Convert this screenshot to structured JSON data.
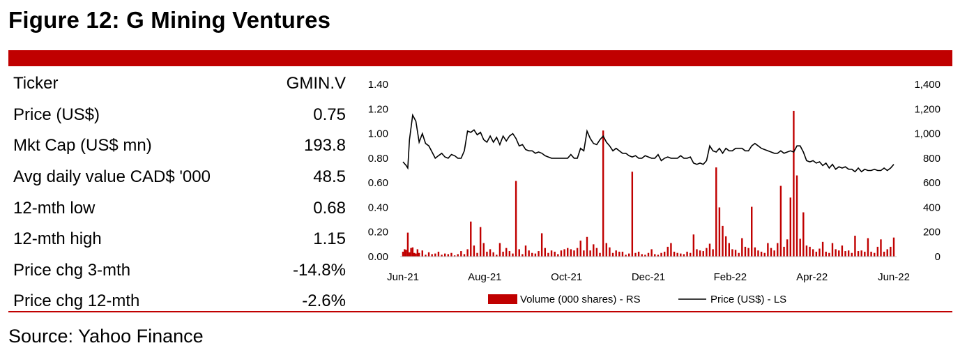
{
  "figure_title": "Figure 12: G Mining Ventures",
  "source": "Source: Yahoo Finance",
  "colors": {
    "accent": "#c00000",
    "volume": "#c00000",
    "price": "#000000"
  },
  "stats": [
    {
      "label": "Ticker",
      "value": "GMIN.V"
    },
    {
      "label": "Price (US$)",
      "value": "0.75"
    },
    {
      "label": "Mkt Cap (US$ mn)",
      "value": "193.8"
    },
    {
      "label": "Avg daily value CAD$ '000",
      "value": "48.5"
    },
    {
      "label": "12-mth low",
      "value": "0.68"
    },
    {
      "label": "12-mth high",
      "value": "1.15"
    },
    {
      "label": "Price chg 3-mth",
      "value": "-14.8%"
    },
    {
      "label": "Price chg 12-mth",
      "value": "-2.6%"
    }
  ],
  "chart_data": {
    "type": "bar+line",
    "x_tick_labels": [
      "Jun-21",
      "Aug-21",
      "Oct-21",
      "Dec-21",
      "Feb-22",
      "Apr-22",
      "Jun-22"
    ],
    "y_left": {
      "ylim": [
        0,
        1.4
      ],
      "ticks": [
        "0.00",
        "0.20",
        "0.40",
        "0.60",
        "0.80",
        "1.00",
        "1.20",
        "1.40"
      ]
    },
    "y_right": {
      "ylim": [
        0,
        1400
      ],
      "ticks": [
        "0",
        "200",
        "400",
        "600",
        "800",
        "1,000",
        "1,200",
        "1,400"
      ]
    },
    "legend_position": "bottom",
    "series": [
      {
        "name": "Volume (000 shares) - RS",
        "type": "bar",
        "axis": "right",
        "points": [
          [
            0,
            40
          ],
          [
            0.5,
            60
          ],
          [
            1,
            55
          ],
          [
            1.5,
            195
          ],
          [
            2,
            35
          ],
          [
            2.5,
            70
          ],
          [
            3,
            75
          ],
          [
            3.5,
            30
          ],
          [
            4,
            25
          ],
          [
            4.5,
            60
          ],
          [
            5,
            30
          ],
          [
            6,
            50
          ],
          [
            7,
            15
          ],
          [
            8,
            35
          ],
          [
            9,
            20
          ],
          [
            10,
            25
          ],
          [
            11,
            40
          ],
          [
            12,
            15
          ],
          [
            13,
            25
          ],
          [
            14,
            20
          ],
          [
            15,
            30
          ],
          [
            16,
            10
          ],
          [
            17,
            20
          ],
          [
            18,
            45
          ],
          [
            19,
            20
          ],
          [
            20,
            60
          ],
          [
            21,
            285
          ],
          [
            22,
            90
          ],
          [
            23,
            30
          ],
          [
            24,
            240
          ],
          [
            25,
            110
          ],
          [
            26,
            40
          ],
          [
            27,
            60
          ],
          [
            28,
            35
          ],
          [
            29,
            15
          ],
          [
            30,
            110
          ],
          [
            31,
            40
          ],
          [
            32,
            70
          ],
          [
            33,
            45
          ],
          [
            34,
            25
          ],
          [
            35,
            615
          ],
          [
            36,
            60
          ],
          [
            37,
            20
          ],
          [
            38,
            90
          ],
          [
            39,
            50
          ],
          [
            40,
            30
          ],
          [
            41,
            25
          ],
          [
            42,
            45
          ],
          [
            43,
            190
          ],
          [
            44,
            70
          ],
          [
            45,
            30
          ],
          [
            46,
            50
          ],
          [
            47,
            40
          ],
          [
            48,
            20
          ],
          [
            49,
            50
          ],
          [
            50,
            60
          ],
          [
            51,
            70
          ],
          [
            52,
            60
          ],
          [
            53,
            50
          ],
          [
            54,
            70
          ],
          [
            55,
            130
          ],
          [
            56,
            50
          ],
          [
            57,
            160
          ],
          [
            58,
            50
          ],
          [
            59,
            100
          ],
          [
            60,
            70
          ],
          [
            61,
            30
          ],
          [
            62,
            1025
          ],
          [
            63,
            110
          ],
          [
            64,
            75
          ],
          [
            65,
            30
          ],
          [
            66,
            50
          ],
          [
            67,
            40
          ],
          [
            68,
            40
          ],
          [
            69,
            15
          ],
          [
            70,
            25
          ],
          [
            71,
            690
          ],
          [
            72,
            30
          ],
          [
            73,
            40
          ],
          [
            74,
            20
          ],
          [
            75,
            15
          ],
          [
            76,
            30
          ],
          [
            77,
            60
          ],
          [
            78,
            20
          ],
          [
            79,
            15
          ],
          [
            80,
            30
          ],
          [
            81,
            40
          ],
          [
            82,
            80
          ],
          [
            83,
            110
          ],
          [
            84,
            40
          ],
          [
            85,
            30
          ],
          [
            86,
            25
          ],
          [
            87,
            20
          ],
          [
            88,
            40
          ],
          [
            89,
            30
          ],
          [
            90,
            180
          ],
          [
            91,
            60
          ],
          [
            92,
            50
          ],
          [
            93,
            45
          ],
          [
            94,
            70
          ],
          [
            95,
            105
          ],
          [
            96,
            60
          ],
          [
            97,
            725
          ],
          [
            98,
            400
          ],
          [
            99,
            250
          ],
          [
            100,
            165
          ],
          [
            101,
            110
          ],
          [
            102,
            60
          ],
          [
            103,
            55
          ],
          [
            104,
            30
          ],
          [
            105,
            150
          ],
          [
            106,
            80
          ],
          [
            107,
            70
          ],
          [
            108,
            405
          ],
          [
            109,
            75
          ],
          [
            110,
            50
          ],
          [
            111,
            40
          ],
          [
            112,
            30
          ],
          [
            113,
            110
          ],
          [
            114,
            70
          ],
          [
            115,
            50
          ],
          [
            116,
            110
          ],
          [
            117,
            575
          ],
          [
            118,
            80
          ],
          [
            119,
            140
          ],
          [
            120,
            480
          ],
          [
            121,
            1185
          ],
          [
            122,
            660
          ],
          [
            123,
            145
          ],
          [
            124,
            360
          ],
          [
            125,
            90
          ],
          [
            126,
            80
          ],
          [
            127,
            60
          ],
          [
            128,
            40
          ],
          [
            129,
            65
          ],
          [
            130,
            120
          ],
          [
            131,
            40
          ],
          [
            132,
            30
          ],
          [
            133,
            110
          ],
          [
            134,
            60
          ],
          [
            135,
            50
          ],
          [
            136,
            90
          ],
          [
            137,
            45
          ],
          [
            138,
            50
          ],
          [
            139,
            30
          ],
          [
            140,
            170
          ],
          [
            141,
            45
          ],
          [
            142,
            50
          ],
          [
            143,
            40
          ],
          [
            144,
            150
          ],
          [
            145,
            40
          ],
          [
            146,
            30
          ],
          [
            147,
            80
          ],
          [
            148,
            140
          ],
          [
            149,
            40
          ],
          [
            150,
            60
          ],
          [
            151,
            80
          ],
          [
            152,
            155
          ]
        ]
      },
      {
        "name": "Price (US$) - LS",
        "type": "line",
        "axis": "left",
        "points": [
          [
            0,
            0.77
          ],
          [
            1,
            0.74
          ],
          [
            1.5,
            0.72
          ],
          [
            2,
            0.95
          ],
          [
            3,
            1.15
          ],
          [
            4,
            1.1
          ],
          [
            5,
            0.93
          ],
          [
            6,
            1.0
          ],
          [
            7,
            0.92
          ],
          [
            8,
            0.9
          ],
          [
            9,
            0.85
          ],
          [
            10,
            0.8
          ],
          [
            11,
            0.82
          ],
          [
            12,
            0.84
          ],
          [
            13,
            0.81
          ],
          [
            14,
            0.8
          ],
          [
            15,
            0.83
          ],
          [
            16,
            0.82
          ],
          [
            17,
            0.8
          ],
          [
            18,
            0.8
          ],
          [
            19,
            0.86
          ],
          [
            20,
            1.02
          ],
          [
            21,
            1.01
          ],
          [
            22,
            1.03
          ],
          [
            23,
            0.99
          ],
          [
            24,
            1.01
          ],
          [
            25,
            0.95
          ],
          [
            26,
            0.93
          ],
          [
            27,
            0.98
          ],
          [
            28,
            0.93
          ],
          [
            29,
            0.97
          ],
          [
            30,
            0.91
          ],
          [
            31,
            0.98
          ],
          [
            32,
            0.94
          ],
          [
            33,
            0.98
          ],
          [
            34,
            1.0
          ],
          [
            35,
            0.96
          ],
          [
            36,
            0.9
          ],
          [
            37,
            0.91
          ],
          [
            38,
            0.87
          ],
          [
            39,
            0.86
          ],
          [
            40,
            0.86
          ],
          [
            41,
            0.84
          ],
          [
            42,
            0.85
          ],
          [
            43,
            0.84
          ],
          [
            44,
            0.82
          ],
          [
            45,
            0.81
          ],
          [
            46,
            0.8
          ],
          [
            47,
            0.8
          ],
          [
            48,
            0.8
          ],
          [
            49,
            0.8
          ],
          [
            50,
            0.8
          ],
          [
            51,
            0.8
          ],
          [
            52,
            0.83
          ],
          [
            53,
            0.8
          ],
          [
            54,
            0.8
          ],
          [
            55,
            0.88
          ],
          [
            56,
            0.86
          ],
          [
            57,
            1.02
          ],
          [
            58,
            0.96
          ],
          [
            59,
            0.92
          ],
          [
            60,
            0.91
          ],
          [
            61,
            0.95
          ],
          [
            62,
            0.98
          ],
          [
            63,
            0.93
          ],
          [
            64,
            0.9
          ],
          [
            65,
            0.86
          ],
          [
            66,
            0.88
          ],
          [
            67,
            0.86
          ],
          [
            68,
            0.84
          ],
          [
            69,
            0.84
          ],
          [
            70,
            0.82
          ],
          [
            71,
            0.81
          ],
          [
            72,
            0.82
          ],
          [
            73,
            0.8
          ],
          [
            74,
            0.8
          ],
          [
            75,
            0.82
          ],
          [
            76,
            0.81
          ],
          [
            77,
            0.8
          ],
          [
            78,
            0.8
          ],
          [
            79,
            0.83
          ],
          [
            80,
            0.78
          ],
          [
            81,
            0.8
          ],
          [
            82,
            0.81
          ],
          [
            83,
            0.8
          ],
          [
            84,
            0.8
          ],
          [
            85,
            0.8
          ],
          [
            86,
            0.82
          ],
          [
            87,
            0.8
          ],
          [
            88,
            0.8
          ],
          [
            89,
            0.81
          ],
          [
            90,
            0.76
          ],
          [
            91,
            0.75
          ],
          [
            92,
            0.76
          ],
          [
            93,
            0.75
          ],
          [
            94,
            0.78
          ],
          [
            95,
            0.9
          ],
          [
            96,
            0.86
          ],
          [
            97,
            0.85
          ],
          [
            98,
            0.88
          ],
          [
            99,
            0.84
          ],
          [
            100,
            0.88
          ],
          [
            101,
            0.86
          ],
          [
            102,
            0.86
          ],
          [
            103,
            0.88
          ],
          [
            104,
            0.88
          ],
          [
            105,
            0.88
          ],
          [
            106,
            0.86
          ],
          [
            107,
            0.86
          ],
          [
            108,
            0.9
          ],
          [
            109,
            0.92
          ],
          [
            110,
            0.9
          ],
          [
            111,
            0.88
          ],
          [
            112,
            0.87
          ],
          [
            113,
            0.86
          ],
          [
            114,
            0.85
          ],
          [
            115,
            0.84
          ],
          [
            116,
            0.84
          ],
          [
            117,
            0.86
          ],
          [
            118,
            0.84
          ],
          [
            119,
            0.85
          ],
          [
            120,
            0.86
          ],
          [
            121,
            0.85
          ],
          [
            122,
            0.9
          ],
          [
            123,
            0.9
          ],
          [
            124,
            0.85
          ],
          [
            125,
            0.78
          ],
          [
            126,
            0.77
          ],
          [
            127,
            0.78
          ],
          [
            128,
            0.76
          ],
          [
            129,
            0.77
          ],
          [
            130,
            0.74
          ],
          [
            131,
            0.76
          ],
          [
            132,
            0.72
          ],
          [
            133,
            0.75
          ],
          [
            134,
            0.71
          ],
          [
            135,
            0.73
          ],
          [
            136,
            0.72
          ],
          [
            137,
            0.73
          ],
          [
            138,
            0.71
          ],
          [
            139,
            0.71
          ],
          [
            140,
            0.69
          ],
          [
            141,
            0.72
          ],
          [
            142,
            0.69
          ],
          [
            143,
            0.71
          ],
          [
            144,
            0.7
          ],
          [
            145,
            0.7
          ],
          [
            146,
            0.71
          ],
          [
            147,
            0.7
          ],
          [
            148,
            0.7
          ],
          [
            149,
            0.72
          ],
          [
            150,
            0.7
          ],
          [
            151,
            0.72
          ],
          [
            152,
            0.75
          ]
        ]
      }
    ]
  }
}
